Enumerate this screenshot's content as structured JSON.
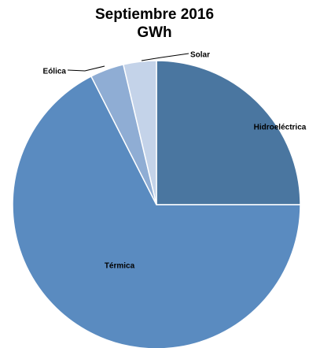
{
  "chart_data": {
    "type": "pie",
    "title": [
      "Septiembre 2016",
      "GWh"
    ],
    "start_angle_deg": 0,
    "direction": "clockwise",
    "slices": [
      {
        "label": "Hidroeléctrica",
        "value": 25.0,
        "color": "#4a76a0",
        "label_mode": "inside"
      },
      {
        "label": "Térmica",
        "value": 67.5,
        "color": "#5a8bc0",
        "label_mode": "inside"
      },
      {
        "label": "Eólica",
        "value": 3.8,
        "color": "#8fadd4",
        "label_mode": "leader"
      },
      {
        "label": "Solar",
        "value": 3.7,
        "color": "#c4d3e9",
        "label_mode": "leader"
      }
    ],
    "legend": "none"
  }
}
